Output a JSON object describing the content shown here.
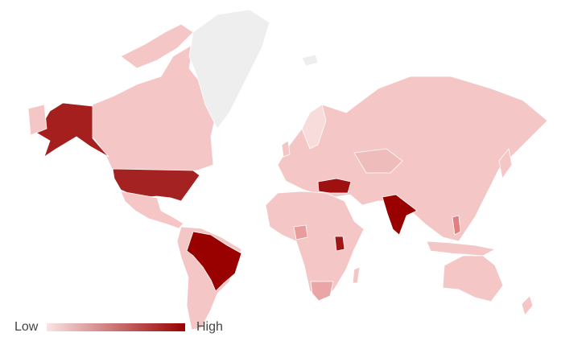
{
  "legend": {
    "low": "Low",
    "high": "High",
    "colors": [
      "#fbe4e4",
      "#990000"
    ]
  }
}
